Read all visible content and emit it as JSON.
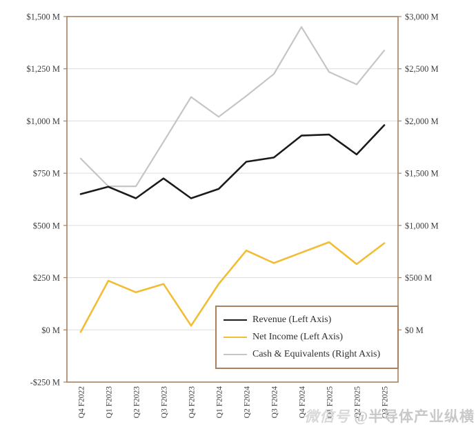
{
  "watermark": {
    "prefix": "微信号",
    "account": "@半导体产业纵横"
  },
  "chart_data": {
    "type": "line",
    "title": "",
    "xlabel": "",
    "ylabel": "",
    "grid": true,
    "legend_position": "inset-bottom-right",
    "categories": [
      "Q4 F2022",
      "Q1 F2023",
      "Q2 F2023",
      "Q3 F2023",
      "Q4 F2023",
      "Q1 F2024",
      "Q2 F2024",
      "Q3 F2024",
      "Q4 F2024",
      "Q1 F2025",
      "Q2 F2025",
      "Q3 F2025"
    ],
    "series": [
      {
        "name": "Revenue (Left Axis)",
        "axis": "left",
        "color": "#1b1b1b",
        "stroke_width": 2.6,
        "values": [
          650,
          685,
          630,
          725,
          630,
          675,
          805,
          825,
          930,
          935,
          840,
          980
        ]
      },
      {
        "name": "Net Income (Left Axis)",
        "axis": "left",
        "color": "#f2bc33",
        "stroke_width": 2.6,
        "values": [
          -10,
          235,
          180,
          220,
          20,
          220,
          380,
          320,
          370,
          420,
          315,
          415
        ]
      },
      {
        "name": "Cash & Equivalents (Right Axis)",
        "axis": "right",
        "color": "#c7c5c3",
        "stroke_width": 2.2,
        "values": [
          1640,
          1375,
          1375,
          1800,
          2230,
          2040,
          2240,
          2450,
          2900,
          2470,
          2350,
          2675
        ]
      }
    ],
    "left_axis": {
      "min": -250,
      "max": 1500,
      "tick_values": [
        1500,
        1250,
        1000,
        750,
        500,
        250,
        0,
        -250
      ],
      "tick_labels": [
        "$1,500 M",
        "$1,250 M",
        "$1,000 M",
        "$750 M",
        "$500 M",
        "$250 M",
        "$0 M",
        "-$250 M"
      ]
    },
    "right_axis": {
      "min": -500,
      "max": 3000,
      "tick_values": [
        3000,
        2500,
        2000,
        1500,
        1000,
        500,
        0
      ],
      "tick_labels": [
        "$3,000 M",
        "$2,500 M",
        "$2,000 M",
        "$1,500 M",
        "$1,000 M",
        "$500 M",
        "$0 M"
      ]
    },
    "colors": {
      "plot_border": "#a8805e",
      "grid": "#dcdcdc",
      "tick_text": "#3d3d3d",
      "background": "#ffffff"
    }
  }
}
